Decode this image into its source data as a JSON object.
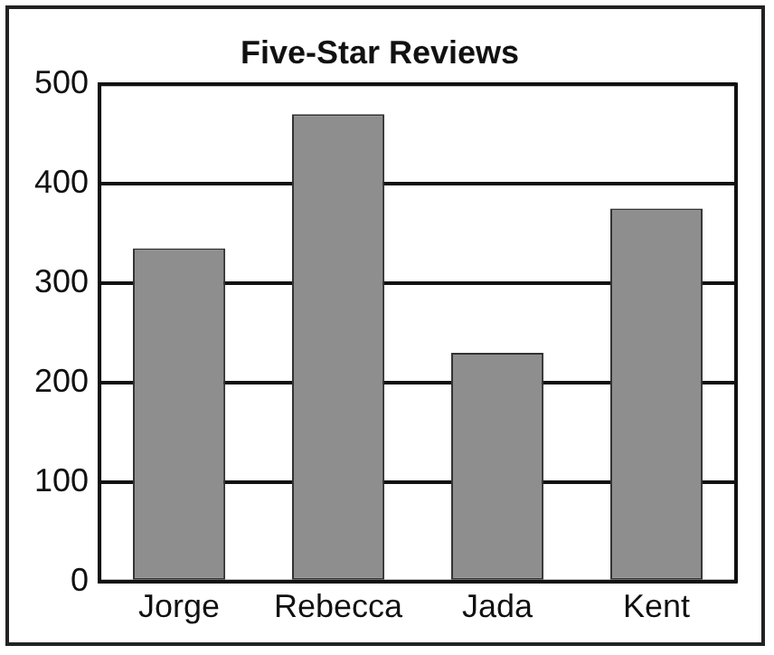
{
  "chart_data": {
    "type": "bar",
    "title": "Five-Star Reviews",
    "categories": [
      "Jorge",
      "Rebecca",
      "Jada",
      "Kent"
    ],
    "values": [
      335,
      470,
      230,
      375
    ],
    "color": "#8e8e8e",
    "ylim": [
      0,
      500
    ],
    "yticks": [
      0,
      100,
      200,
      300,
      400,
      500
    ],
    "grid": "y",
    "legend": false
  }
}
